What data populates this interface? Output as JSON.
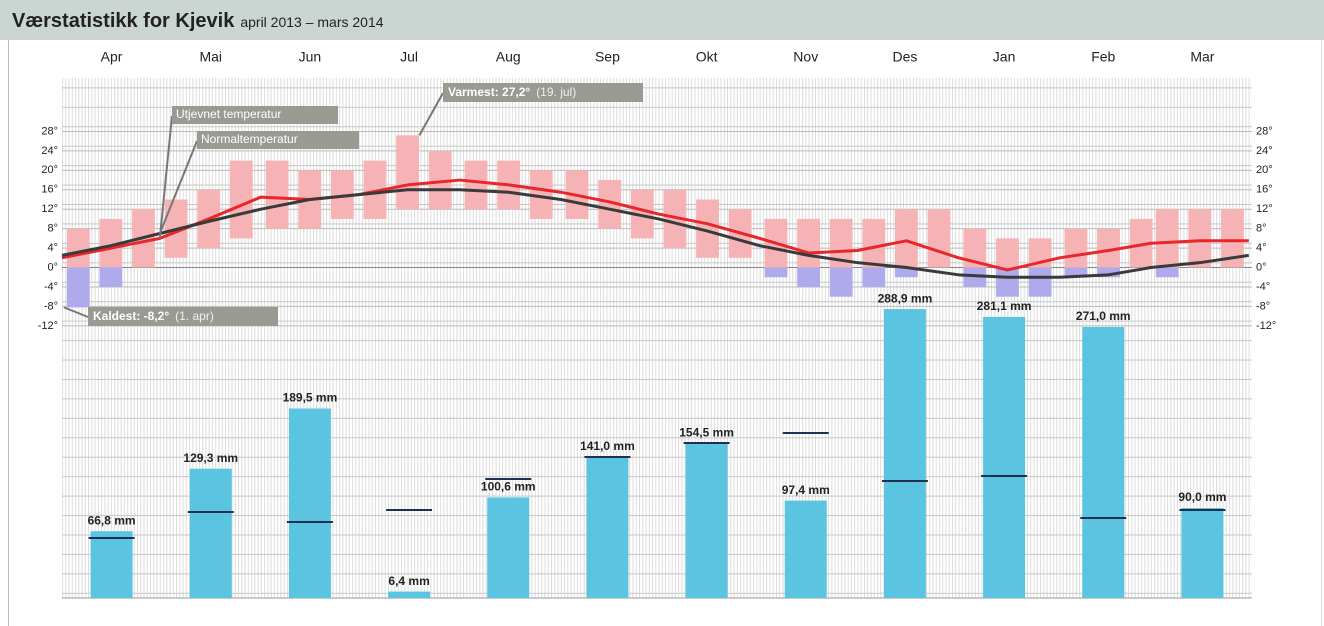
{
  "chart_data": {
    "type": "climate",
    "title": "Værstatistikk for Kjevik",
    "subtitle": "april 2013 – mars 2014",
    "categories": [
      "Apr",
      "Mai",
      "Jun",
      "Jul",
      "Aug",
      "Sep",
      "Okt",
      "Nov",
      "Des",
      "Jan",
      "Feb",
      "Mar"
    ],
    "xlim": [
      0,
      365
    ],
    "ylim": [
      -68,
      39
    ],
    "yticks": [
      {
        "value": 28,
        "label": "28°"
      },
      {
        "value": 24,
        "label": "24°"
      },
      {
        "value": 20,
        "label": "20°"
      },
      {
        "value": 16,
        "label": "16°"
      },
      {
        "value": 12,
        "label": "12°"
      },
      {
        "value": 8,
        "label": "8°"
      },
      {
        "value": 4,
        "label": "4°"
      },
      {
        "value": 0,
        "label": "0°"
      },
      {
        "value": -4,
        "label": "-4°"
      },
      {
        "value": -8,
        "label": "-8°"
      },
      {
        "value": -12,
        "label": "-12°"
      }
    ],
    "daily_range": {
      "x": [
        0,
        10,
        20,
        30,
        40,
        50,
        61,
        71,
        81,
        91,
        101,
        111,
        122,
        132,
        142,
        153,
        163,
        173,
        183,
        193,
        203,
        214,
        224,
        234,
        244,
        254,
        264,
        275,
        285,
        295,
        306,
        316,
        326,
        334,
        344,
        354
      ],
      "low": [
        -8.2,
        -4,
        0,
        2,
        4,
        6,
        8,
        8,
        10,
        10,
        12,
        12,
        12,
        12,
        10,
        10,
        8,
        6,
        4,
        2,
        2,
        -2,
        -4,
        -6,
        -4,
        -2,
        0,
        -4,
        -6,
        -6,
        -2,
        -2,
        0,
        -2,
        0,
        0
      ],
      "high": [
        8,
        10,
        12,
        14,
        16,
        22,
        22,
        20,
        20,
        22,
        27.2,
        24,
        22,
        22,
        20,
        20,
        18,
        16,
        16,
        14,
        12,
        10,
        10,
        10,
        10,
        12,
        12,
        8,
        6,
        6,
        8,
        8,
        10,
        12,
        12,
        12
      ],
      "color_warm": "#f5b3b5",
      "color_cold": "#aeaaeb"
    },
    "series": [
      {
        "name": "Utjevnet temperatur",
        "color": "#e8262c",
        "x": [
          0,
          15,
          30,
          45,
          61,
          76,
          91,
          106,
          122,
          137,
          153,
          168,
          183,
          198,
          214,
          229,
          244,
          259,
          275,
          290,
          306,
          321,
          334,
          349,
          364
        ],
        "values": [
          2,
          4,
          6,
          10,
          14.5,
          14,
          15,
          17,
          18,
          17,
          15.5,
          13.5,
          11,
          9,
          6,
          3,
          3.5,
          5.5,
          2,
          -0.5,
          2,
          3.5,
          5,
          5.5,
          5.5
        ]
      },
      {
        "name": "Normaltemperatur",
        "color": "#3a3a3a",
        "x": [
          0,
          15,
          30,
          45,
          61,
          76,
          91,
          106,
          122,
          137,
          153,
          168,
          183,
          198,
          214,
          229,
          244,
          259,
          275,
          290,
          306,
          321,
          334,
          349,
          364
        ],
        "values": [
          2.5,
          4.5,
          7,
          9.5,
          12,
          14,
          15,
          16,
          16,
          15.5,
          14,
          12,
          10,
          7.5,
          4.5,
          2.5,
          1,
          0,
          -1.5,
          -2,
          -2,
          -1.5,
          0,
          1,
          2.5
        ]
      }
    ],
    "precipitation": {
      "values": [
        66.8,
        129.3,
        189.5,
        6.4,
        100.6,
        141.0,
        154.5,
        97.4,
        288.9,
        281.1,
        271.0,
        90.0
      ],
      "value_labels": [
        "66,8 mm",
        "129,3 mm",
        "189,5 mm",
        "6,4 mm",
        "100,6 mm",
        "141,0 mm",
        "154,5 mm",
        "97,4 mm",
        "288,9 mm",
        "281,1 mm",
        "271,0 mm",
        "90,0 mm"
      ],
      "normal": [
        60,
        86,
        76,
        88,
        119,
        141,
        155,
        165,
        117,
        122,
        80,
        88
      ],
      "color": "#5bc5e1",
      "normal_color": "#1f2f50",
      "y2lim": [
        0,
        520
      ]
    },
    "annotations": [
      {
        "text": "Varmest: 27,2°",
        "date": "(19. jul)",
        "x": 109,
        "value": 27.2
      },
      {
        "text": "Kaldest: -8,2°",
        "date": "(1. apr)",
        "x": 0,
        "value": -8.2
      }
    ]
  }
}
